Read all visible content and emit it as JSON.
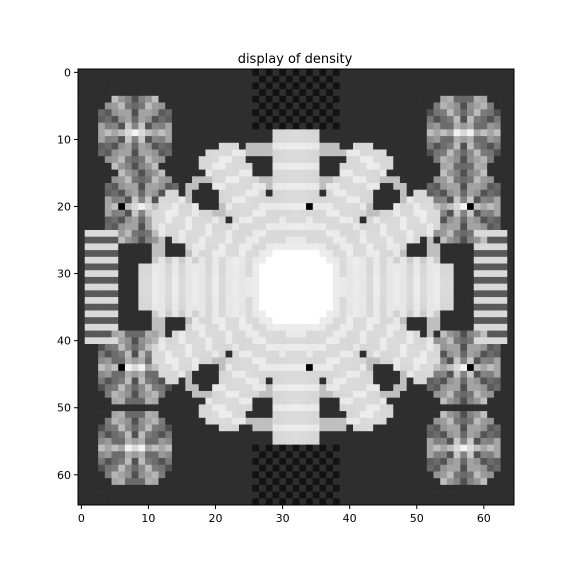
{
  "chart_data": {
    "type": "heatmap",
    "title": "display of density",
    "xlabel": "",
    "ylabel": "",
    "grid_size": [
      65,
      65
    ],
    "xlim": [
      -0.5,
      64.5
    ],
    "ylim": [
      64.5,
      -0.5
    ],
    "x_ticks": [
      0,
      10,
      20,
      30,
      40,
      50,
      60
    ],
    "y_ticks": [
      0,
      10,
      20,
      30,
      40,
      50,
      60
    ],
    "colormap": "gray",
    "value_range": [
      0,
      1
    ],
    "colors": {
      "background": "#ffffff",
      "axes_frame": "#000000"
    },
    "pattern": {
      "description_values": {
        "background_level": 0.18,
        "dark_rings_level": 0.05,
        "center_level": 1.0,
        "arm_level": 0.93,
        "side_motif_level": 0.75
      },
      "central_arms_angles_deg": [
        0,
        30,
        60,
        90,
        120,
        150
      ],
      "side_motif_centers": [
        [
          8,
          9
        ],
        [
          9,
          20
        ],
        [
          8,
          44
        ],
        [
          8,
          56
        ],
        [
          57,
          9
        ],
        [
          57,
          20
        ],
        [
          57,
          44
        ],
        [
          57,
          56
        ]
      ],
      "side_ladder_columns": [
        3,
        61
      ],
      "dark_dot_centers": [
        [
          6,
          20
        ],
        [
          58,
          20
        ],
        [
          6,
          44
        ],
        [
          58,
          44
        ],
        [
          34,
          20
        ],
        [
          34,
          44
        ]
      ]
    }
  }
}
